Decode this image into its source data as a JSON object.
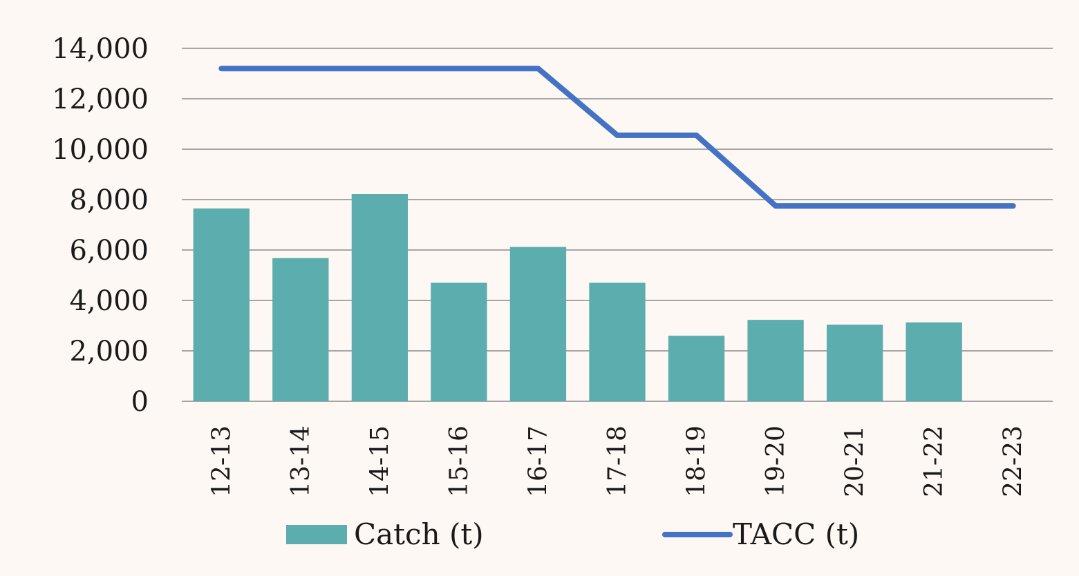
{
  "chart_data": {
    "type": "bar",
    "categories": [
      "12-13",
      "13-14",
      "14-15",
      "15-16",
      "16-17",
      "17-18",
      "18-19",
      "19-20",
      "20-21",
      "21-22",
      "22-23"
    ],
    "series": [
      {
        "name": "Catch (t)",
        "type": "bar",
        "color": "#5baead",
        "values": [
          7650,
          5680,
          8220,
          4700,
          6120,
          4700,
          2600,
          3230,
          3040,
          3130,
          null
        ]
      },
      {
        "name": "TACC (t)",
        "type": "line",
        "color": "#4472c4",
        "values": [
          13200,
          13200,
          13200,
          13200,
          13200,
          10550,
          10550,
          7750,
          7750,
          7750,
          7750
        ]
      }
    ],
    "yticks": [
      0,
      2000,
      4000,
      6000,
      8000,
      10000,
      12000,
      14000
    ],
    "ytick_labels": [
      "0",
      "2,000",
      "4,000",
      "6,000",
      "8,000",
      "10,000",
      "12,000",
      "14,000"
    ],
    "ylim": [
      0,
      14000
    ],
    "grid": true,
    "legend": "bottom",
    "gridline_color": "#a6a6a6",
    "background": "#fdf8f3"
  }
}
